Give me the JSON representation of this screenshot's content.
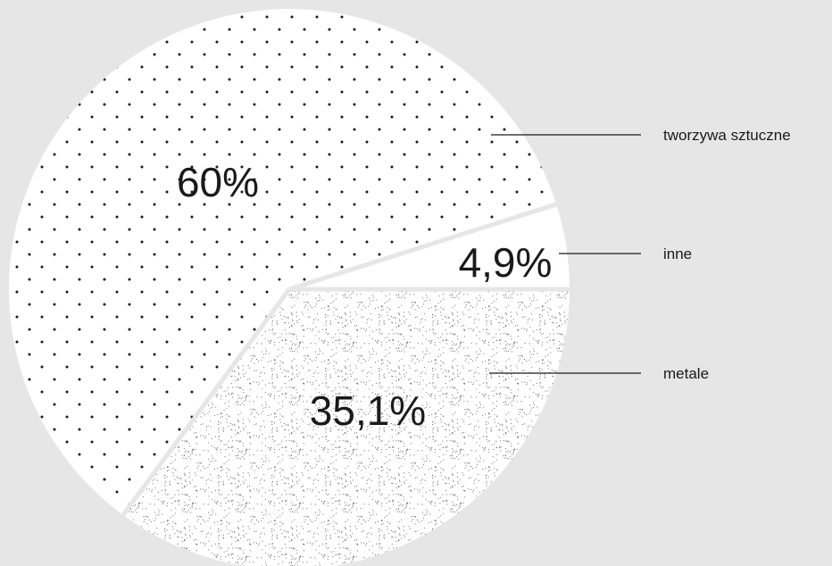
{
  "chart_data": {
    "type": "pie",
    "title": "",
    "start_angle_deg": 0,
    "direction": "counterclockwise",
    "legend_placement": "right",
    "slices": [
      {
        "name": "inne",
        "value": 4.9,
        "label": "4,9%",
        "fill": "#ffffff",
        "pattern": "none"
      },
      {
        "name": "tworzywa sztuczne",
        "value": 60,
        "label": "60%",
        "fill": "#ffffff",
        "pattern": "sparse-dots"
      },
      {
        "name": "metale",
        "value": 35.1,
        "label": "35,1%",
        "fill": "#ffffff",
        "pattern": "fine-stipple"
      }
    ],
    "colors": {
      "background": "#e6e6e7",
      "slice_fill": "#ffffff",
      "dots": "#1a1a1a",
      "text": "#1a1a1a"
    }
  }
}
